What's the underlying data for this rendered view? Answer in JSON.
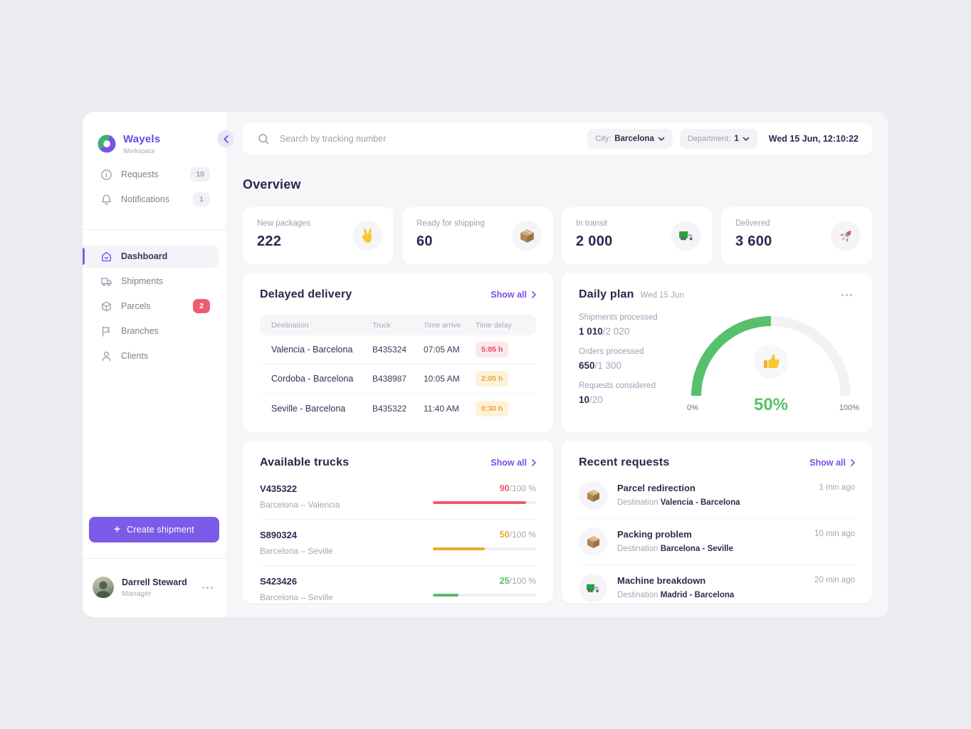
{
  "app": {
    "brand": "Wayels",
    "workspace": "Workspace"
  },
  "sidebar": {
    "top_items": [
      {
        "id": "requests",
        "label": "Requests",
        "badge": "10"
      },
      {
        "id": "notifications",
        "label": "Notifications",
        "badge": "1"
      }
    ],
    "menu": [
      {
        "id": "dashboard",
        "label": "Dashboard"
      },
      {
        "id": "shipments",
        "label": "Shipments"
      },
      {
        "id": "parcels",
        "label": "Parcels",
        "badge": "2"
      },
      {
        "id": "branches",
        "label": "Branches"
      },
      {
        "id": "clients",
        "label": "Clients"
      }
    ],
    "create_button": "Create shipment",
    "profile": {
      "name": "Darrell Steward",
      "role": "Manager"
    }
  },
  "topbar": {
    "search_placeholder": "Search by tracking number",
    "city_label": "City:",
    "city_value": "Barcelona",
    "department_label": "Department:",
    "department_value": "1",
    "datetime": "Wed 15 Jun, 12:10:22"
  },
  "page_title": "Overview",
  "stats": [
    {
      "label": "New packages",
      "value": "222",
      "icon": "victory-hand"
    },
    {
      "label": "Ready for shipping",
      "value": "60",
      "icon": "package"
    },
    {
      "label": "In transit",
      "value": "2 000",
      "icon": "truck"
    },
    {
      "label": "Delivered",
      "value": "3 600",
      "icon": "rocket"
    }
  ],
  "delayed_delivery": {
    "title": "Delayed delivery",
    "show_all": "Show all",
    "columns": [
      "Destination",
      "Truck",
      "Time arrive",
      "Time delay"
    ],
    "rows": [
      {
        "destination": "Valencia - Barcelona",
        "truck": "B435324",
        "time_arrive": "07:05 AM",
        "time_delay": "5:05 h",
        "severity": "red"
      },
      {
        "destination": "Cordoba - Barcelona",
        "truck": "B438987",
        "time_arrive": "10:05 AM",
        "time_delay": "2:05 h",
        "severity": "orange"
      },
      {
        "destination": "Seville - Barcelona",
        "truck": "B435322",
        "time_arrive": "11:40 AM",
        "time_delay": "0:30 h",
        "severity": "orange"
      }
    ]
  },
  "daily_plan": {
    "title": "Daily plan",
    "date": "Wed 15 Jun",
    "stats": [
      {
        "label": "Shipments processed",
        "current": "1 010",
        "total": "/2 020"
      },
      {
        "label": "Orders processed",
        "current": "650",
        "total": "/1 300"
      },
      {
        "label": "Requests considered",
        "current": "10",
        "total": "/20"
      }
    ],
    "gauge": {
      "percent": 50,
      "display": "50%",
      "min_label": "0%",
      "max_label": "100%",
      "icon": "thumbs-up",
      "color": "#57c06a",
      "track": "#f2f2f5"
    }
  },
  "available_trucks": {
    "title": "Available trucks",
    "show_all": "Show all",
    "rows": [
      {
        "truck": "V435322",
        "route": "Barcelona – Valencia",
        "value": "90",
        "total": "/100 %",
        "percent": 90,
        "color": "#ee5c72"
      },
      {
        "truck": "S890324",
        "route": "Barcelona – Seville",
        "value": "50",
        "total": "/100 %",
        "percent": 50,
        "color": "#efa82e"
      },
      {
        "truck": "S423426",
        "route": "Barcelona – Seville",
        "value": "25",
        "total": "/100 %",
        "percent": 25,
        "color": "#57c06a"
      }
    ]
  },
  "recent_requests": {
    "title": "Recent requests",
    "show_all": "Show all",
    "items": [
      {
        "title": "Parcel redirection",
        "destination_label": "Destination",
        "destination": "Valencia - Barcelona",
        "time": "1 min ago",
        "icon": "package"
      },
      {
        "title": "Packing problem",
        "destination_label": "Destination",
        "destination": "Barcelona - Seville",
        "time": "10 min ago",
        "icon": "package"
      },
      {
        "title": "Machine breakdown",
        "destination_label": "Destination",
        "destination": "Madrid - Barcelona",
        "time": "20 min ago",
        "icon": "truck"
      }
    ]
  },
  "colors": {
    "accent_purple": "#7b5be8",
    "red": "#ee5c72",
    "orange": "#efa82e",
    "green": "#57c06a",
    "navy_text": "#2b2d4e",
    "content_bg": "#f6f6f9"
  }
}
